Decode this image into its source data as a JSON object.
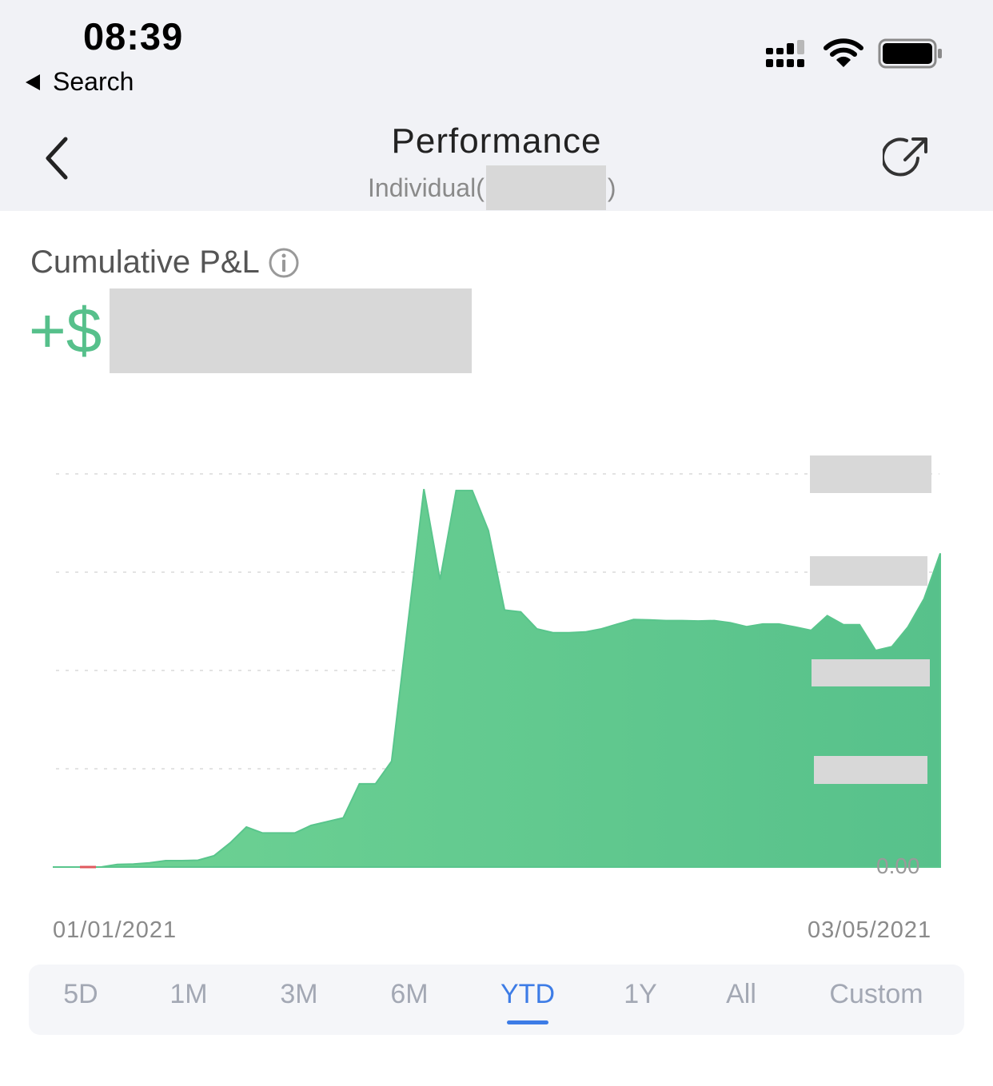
{
  "status_bar": {
    "time": "08:39",
    "back_app": "Search"
  },
  "header": {
    "title": "Performance",
    "subtitle_prefix": "Individual(",
    "subtitle_suffix": ")"
  },
  "pnl": {
    "label": "Cumulative P&L",
    "sign": "+$"
  },
  "axis": {
    "zero_label": "0.00",
    "start_date": "01/01/2021",
    "end_date": "03/05/2021"
  },
  "range_tabs": [
    {
      "label": "5D",
      "active": false
    },
    {
      "label": "1M",
      "active": false
    },
    {
      "label": "3M",
      "active": false
    },
    {
      "label": "6M",
      "active": false
    },
    {
      "label": "YTD",
      "active": true
    },
    {
      "label": "1Y",
      "active": false
    },
    {
      "label": "All",
      "active": false
    },
    {
      "label": "Custom",
      "active": false
    }
  ],
  "colors": {
    "accent": "#3d7ce6",
    "gain": "#56c08b",
    "loss": "#e0595e"
  },
  "chart_data": {
    "type": "area",
    "x_range": [
      "01/01/2021",
      "03/05/2021"
    ],
    "y_min": 0,
    "grid": true,
    "series": [
      {
        "values": [
          0,
          0,
          0,
          0,
          0.007,
          0.008,
          0.011,
          0.017,
          0.017,
          0.018,
          0.03,
          0.064,
          0.106,
          0.09,
          0.09,
          0.09,
          0.11,
          0.12,
          0.13,
          0.22,
          0.22,
          0.28,
          0.64,
          1.0,
          0.76,
          0.996,
          0.996,
          0.89,
          0.68,
          0.675,
          0.63,
          0.62,
          0.62,
          0.622,
          0.63,
          0.643,
          0.655,
          0.654,
          0.652,
          0.652,
          0.651,
          0.652,
          0.646,
          0.636,
          0.643,
          0.643,
          0.635,
          0.626,
          0.665,
          0.641,
          0.641,
          0.573,
          0.583,
          0.635,
          0.71,
          0.83
        ]
      }
    ]
  }
}
